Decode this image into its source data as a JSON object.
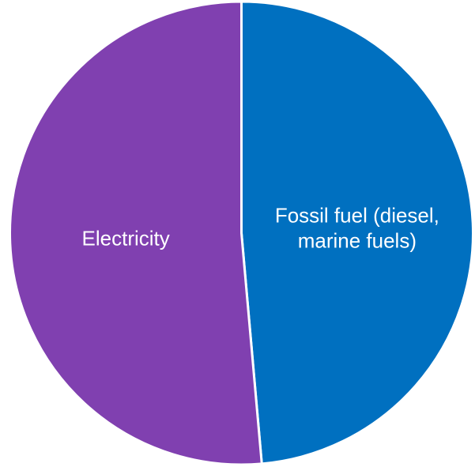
{
  "chart_data": {
    "type": "pie",
    "title": "",
    "slices": [
      {
        "label_lines": [
          "Fossil fuel (diesel,",
          "marine fuels)"
        ],
        "value": 48.6,
        "color": "#0070C0"
      },
      {
        "label_lines": [
          "Electricity"
        ],
        "value": 51.4,
        "color": "#8040B0"
      }
    ],
    "start_angle_deg": 0,
    "direction": "clockwise",
    "border_color": "#ffffff",
    "legend": "none"
  }
}
